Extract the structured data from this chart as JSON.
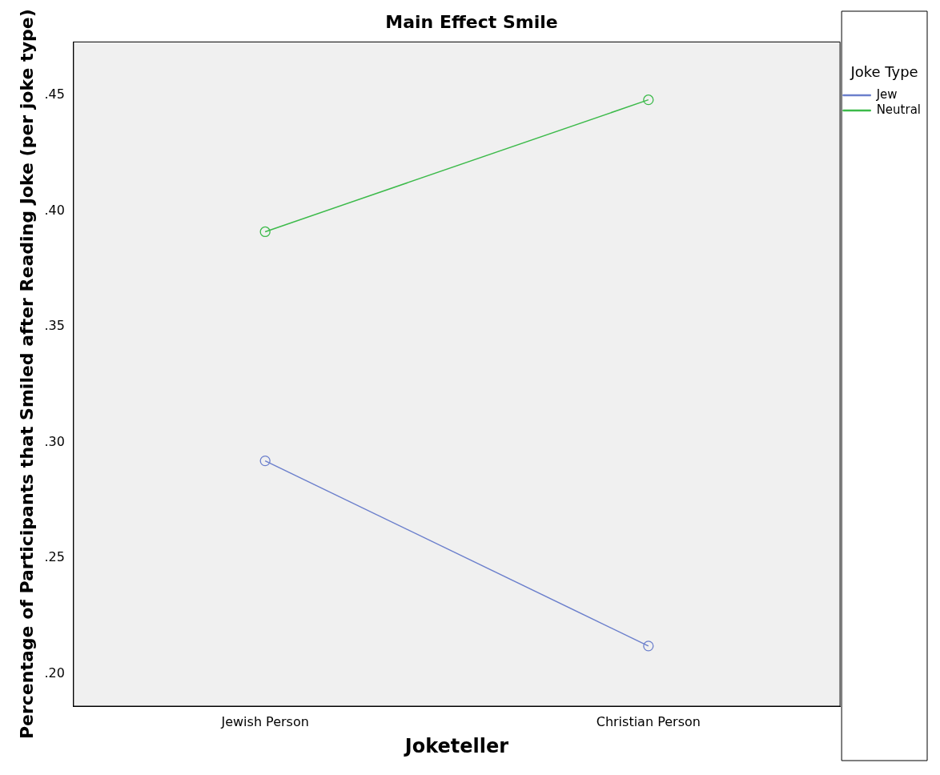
{
  "chart_data": {
    "type": "line",
    "title": "Main Effect Smile",
    "xlabel": "Joketeller",
    "ylabel": "Percentage of Participants that Smiled after Reading Joke (per joke type)",
    "legend_title": "Joke Type",
    "categories": [
      "Jewish Person",
      "Christian Person"
    ],
    "series": [
      {
        "name": "Jew",
        "color": "#6b7fcc",
        "values": [
          0.292,
          0.212
        ]
      },
      {
        "name": "Neutral",
        "color": "#3cba4a",
        "values": [
          0.391,
          0.448
        ]
      }
    ],
    "ylim": [
      0.186,
      0.473
    ],
    "yticks": [
      {
        "value": 0.2,
        "label": ".20"
      },
      {
        "value": 0.25,
        "label": ".25"
      },
      {
        "value": 0.3,
        "label": ".30"
      },
      {
        "value": 0.35,
        "label": ".35"
      },
      {
        "value": 0.4,
        "label": ".40"
      },
      {
        "value": 0.45,
        "label": ".45"
      }
    ],
    "grid": false,
    "legend": "top right",
    "marker": "circle",
    "line_style": "solid"
  }
}
